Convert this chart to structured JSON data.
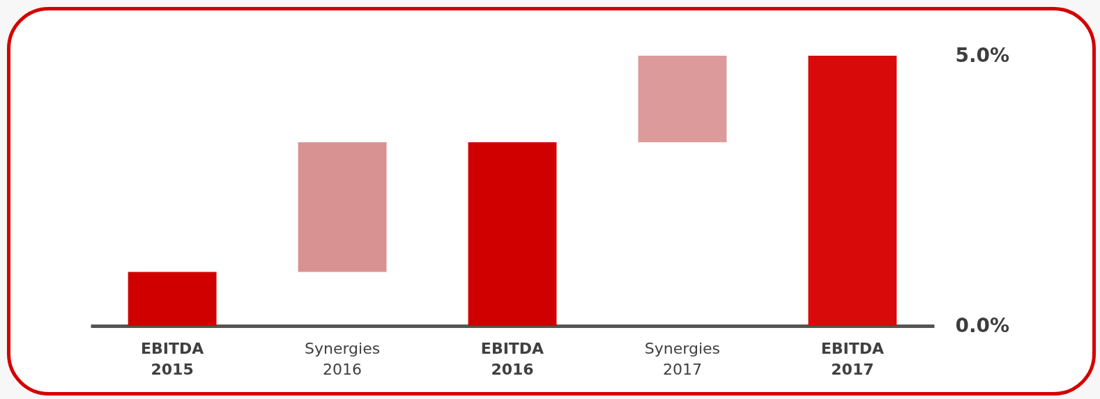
{
  "chart_data": {
    "type": "bar",
    "categories": [
      "EBITDA 2015",
      "Synergies 2016",
      "EBITDA 2016",
      "Synergies 2017",
      "EBITDA 2017"
    ],
    "values": [
      1.0,
      2.4,
      3.4,
      1.6,
      5.0
    ],
    "base": [
      0,
      1.0,
      0,
      3.4,
      0
    ],
    "colors": [
      "#d10000",
      "#d99292",
      "#d10000",
      "#dc9a9a",
      "#d80a0a"
    ],
    "ylim": [
      0,
      5
    ],
    "yticks": [
      {
        "value": 0,
        "label": "0.0%"
      },
      {
        "value": 5,
        "label": "5.0%"
      }
    ]
  }
}
